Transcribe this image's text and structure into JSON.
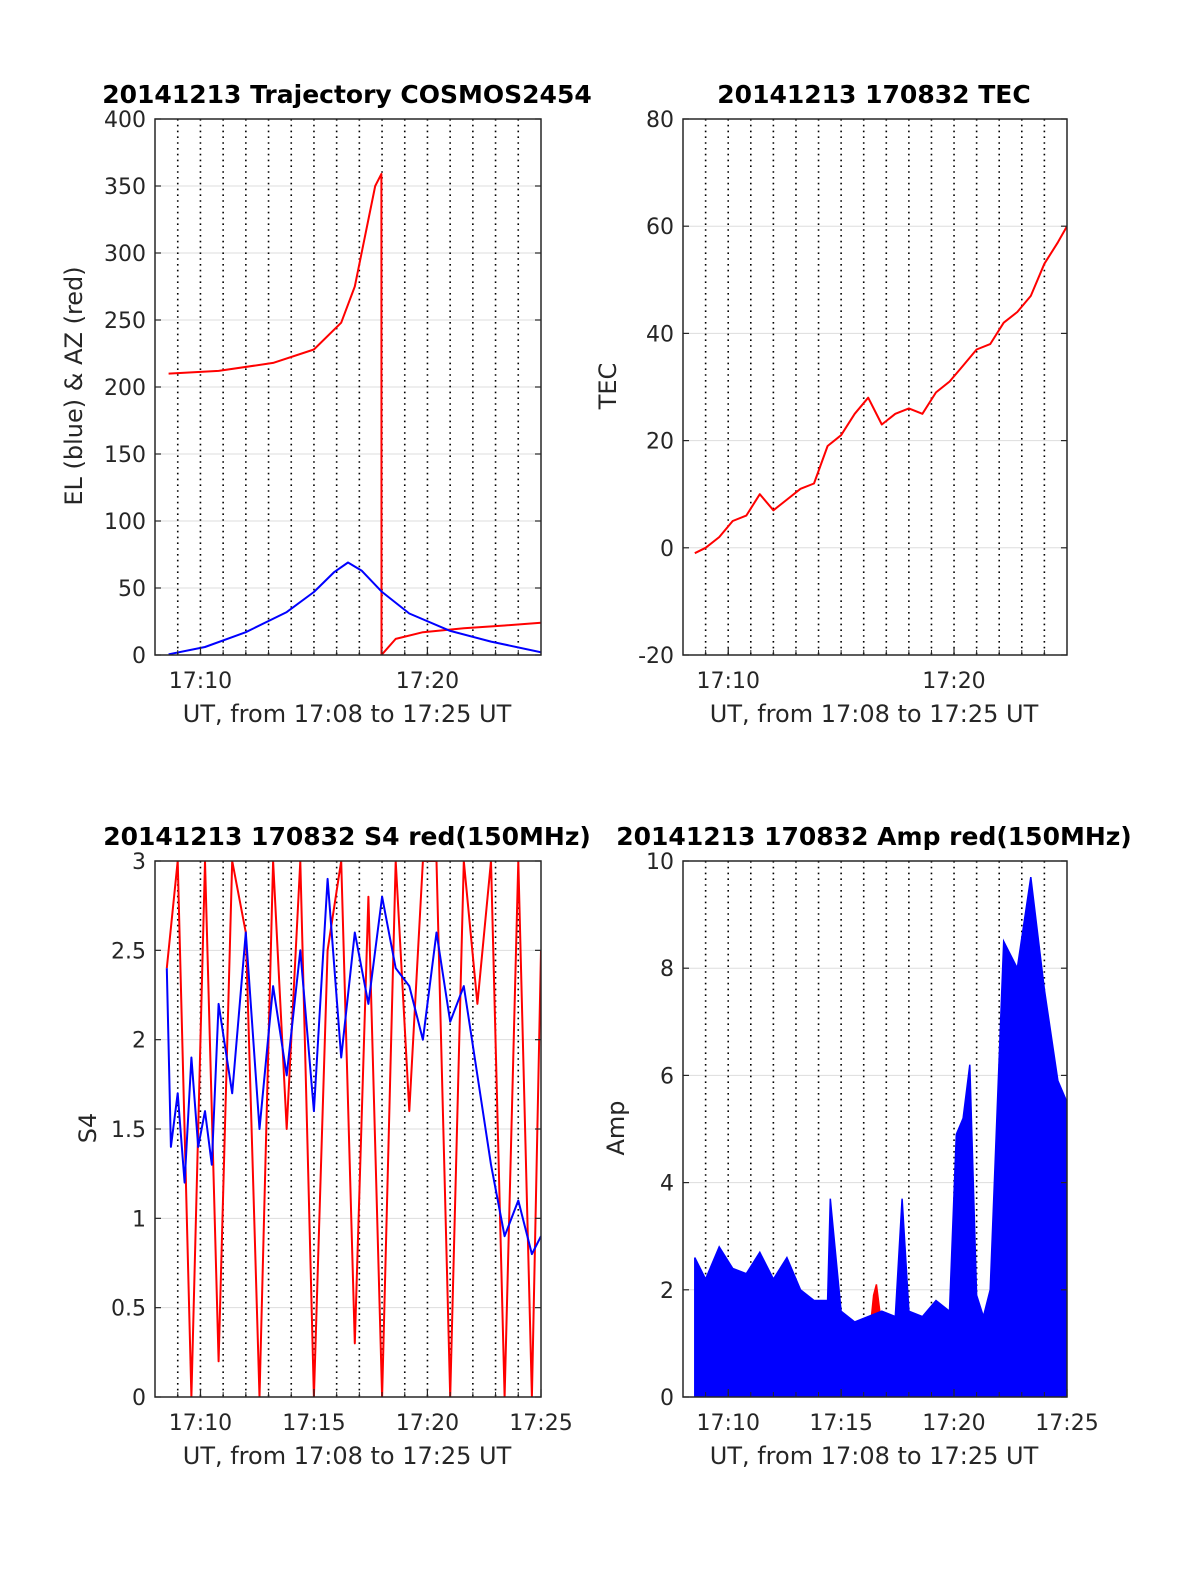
{
  "chart_data": [
    {
      "type": "line",
      "title": "20141213 Trajectory COSMOS2454",
      "xlabel": "UT, from 17:08 to 17:25 UT",
      "ylabel": "EL (blue) & AZ (red)",
      "xlim": [
        17.1333,
        17.4167
      ],
      "ylim": [
        0,
        400
      ],
      "yticks": [
        0,
        50,
        100,
        150,
        200,
        250,
        300,
        350,
        400
      ],
      "yticklabels": [
        "0",
        "50",
        "100",
        "150",
        "200",
        "250",
        "300",
        "350",
        "400"
      ],
      "xticks": [
        17.1667,
        17.3333
      ],
      "xticklabels": [
        "17:10",
        "17:20"
      ],
      "grid": true,
      "series": [
        {
          "color": "#ff0000",
          "x": [
            17.1433,
            17.18,
            17.22,
            17.25,
            17.27,
            17.28,
            17.29,
            17.295,
            17.2995,
            17.2996,
            17.31,
            17.33,
            17.36,
            17.39,
            17.4167
          ],
          "y": [
            210,
            212,
            218,
            228,
            248,
            275,
            325,
            350,
            359,
            0,
            12,
            17,
            20,
            22,
            24
          ]
        },
        {
          "color": "#0000ff",
          "x": [
            17.1433,
            17.17,
            17.2,
            17.23,
            17.25,
            17.265,
            17.275,
            17.285,
            17.3,
            17.32,
            17.35,
            17.38,
            17.4167
          ],
          "y": [
            0.5,
            6,
            17,
            32,
            47,
            62,
            69,
            63,
            47,
            31,
            18,
            10,
            2
          ]
        }
      ]
    },
    {
      "type": "line",
      "title": "20141213 170832 TEC",
      "xlabel": "UT, from 17:08 to 17:25 UT",
      "ylabel": "TEC",
      "xlim": [
        17.1333,
        17.4167
      ],
      "ylim": [
        -20,
        80
      ],
      "yticks": [
        -20,
        0,
        20,
        40,
        60,
        80
      ],
      "yticklabels": [
        "-20",
        "0",
        "20",
        "40",
        "60",
        "80"
      ],
      "xticks": [
        17.1667,
        17.3333
      ],
      "xticklabels": [
        "17:10",
        "17:20"
      ],
      "grid": true,
      "series": [
        {
          "color": "#ff0000",
          "x": [
            17.142,
            17.15,
            17.16,
            17.17,
            17.18,
            17.19,
            17.2,
            17.21,
            17.22,
            17.23,
            17.24,
            17.25,
            17.26,
            17.27,
            17.28,
            17.29,
            17.3,
            17.31,
            17.32,
            17.33,
            17.34,
            17.35,
            17.36,
            17.37,
            17.38,
            17.39,
            17.4,
            17.41,
            17.4167
          ],
          "y": [
            -1,
            0,
            2,
            5,
            6,
            10,
            7,
            9,
            11,
            12,
            19,
            21,
            25,
            28,
            23,
            25,
            26,
            25,
            29,
            31,
            34,
            37,
            38,
            42,
            44,
            47,
            53,
            57,
            60
          ]
        }
      ]
    },
    {
      "type": "line",
      "title": "20141213 170832 S4 red(150MHz)",
      "xlabel": "UT, from 17:08 to 17:25 UT",
      "ylabel": "S4",
      "xlim": [
        17.1333,
        17.4167
      ],
      "ylim": [
        0,
        3
      ],
      "yticks": [
        0,
        0.5,
        1,
        1.5,
        2,
        2.5,
        3
      ],
      "yticklabels": [
        "0",
        "0.5",
        "1",
        "1.5",
        "2",
        "2.5",
        "3"
      ],
      "xticks": [
        17.1667,
        17.25,
        17.3333,
        17.4167
      ],
      "xticklabels": [
        "17:10",
        "17:15",
        "17:20",
        "17:25"
      ],
      "grid": true,
      "series": [
        {
          "color": "#ff0000",
          "x": [
            17.142,
            17.15,
            17.16,
            17.17,
            17.18,
            17.19,
            17.2,
            17.21,
            17.22,
            17.23,
            17.24,
            17.25,
            17.26,
            17.27,
            17.28,
            17.29,
            17.3,
            17.31,
            17.32,
            17.33,
            17.34,
            17.35,
            17.36,
            17.37,
            17.38,
            17.39,
            17.4,
            17.41,
            17.4167
          ],
          "y": [
            2.4,
            3,
            0,
            3,
            0.2,
            3,
            2.6,
            0,
            3,
            1.5,
            3,
            0,
            2.5,
            3,
            0.3,
            2.8,
            0,
            3,
            1.6,
            3,
            3,
            0,
            3,
            2.2,
            3,
            0,
            3,
            0,
            2.5
          ]
        },
        {
          "color": "#0000ff",
          "x": [
            17.142,
            17.145,
            17.15,
            17.155,
            17.16,
            17.165,
            17.17,
            17.175,
            17.18,
            17.19,
            17.2,
            17.21,
            17.22,
            17.23,
            17.24,
            17.25,
            17.26,
            17.27,
            17.28,
            17.29,
            17.3,
            17.31,
            17.32,
            17.33,
            17.34,
            17.35,
            17.36,
            17.37,
            17.38,
            17.39,
            17.4,
            17.41,
            17.4167
          ],
          "y": [
            2.4,
            1.4,
            1.7,
            1.2,
            1.9,
            1.4,
            1.6,
            1.3,
            2.2,
            1.7,
            2.6,
            1.5,
            2.3,
            1.8,
            2.5,
            1.6,
            2.9,
            1.9,
            2.6,
            2.2,
            2.8,
            2.4,
            2.3,
            2.0,
            2.6,
            2.1,
            2.3,
            1.8,
            1.3,
            0.9,
            1.1,
            0.8,
            0.9
          ]
        }
      ]
    },
    {
      "type": "area",
      "title": "20141213 170832 Amp red(150MHz)",
      "xlabel": "UT, from 17:08 to 17:25 UT",
      "ylabel": "Amp",
      "xlim": [
        17.1333,
        17.4167
      ],
      "ylim": [
        0,
        10
      ],
      "yticks": [
        0,
        2,
        4,
        6,
        8,
        10
      ],
      "yticklabels": [
        "0",
        "2",
        "4",
        "6",
        "8",
        "10"
      ],
      "xticks": [
        17.1667,
        17.25,
        17.3333,
        17.4167
      ],
      "xticklabels": [
        "17:10",
        "17:15",
        "17:20",
        "17:25"
      ],
      "grid": true,
      "series": [
        {
          "color": "#ff0000",
          "x": [
            17.272,
            17.274,
            17.276,
            17.278,
            17.28
          ],
          "y": [
            1.4,
            1.9,
            2.1,
            1.7,
            1.3
          ]
        },
        {
          "color": "#0000ff",
          "x": [
            17.142,
            17.15,
            17.16,
            17.17,
            17.18,
            17.19,
            17.2,
            17.21,
            17.22,
            17.23,
            17.24,
            17.242,
            17.25,
            17.26,
            17.27,
            17.28,
            17.29,
            17.295,
            17.3,
            17.31,
            17.32,
            17.33,
            17.335,
            17.34,
            17.345,
            17.35,
            17.355,
            17.36,
            17.37,
            17.38,
            17.39,
            17.4,
            17.41,
            17.4167
          ],
          "y": [
            2.6,
            2.2,
            2.8,
            2.4,
            2.3,
            2.7,
            2.2,
            2.6,
            2.0,
            1.8,
            1.8,
            3.7,
            1.6,
            1.4,
            1.5,
            1.6,
            1.5,
            3.7,
            1.6,
            1.5,
            1.8,
            1.6,
            4.9,
            5.2,
            6.2,
            1.9,
            1.5,
            2.0,
            8.5,
            8.0,
            9.7,
            7.6,
            5.9,
            5.5
          ]
        }
      ]
    }
  ]
}
